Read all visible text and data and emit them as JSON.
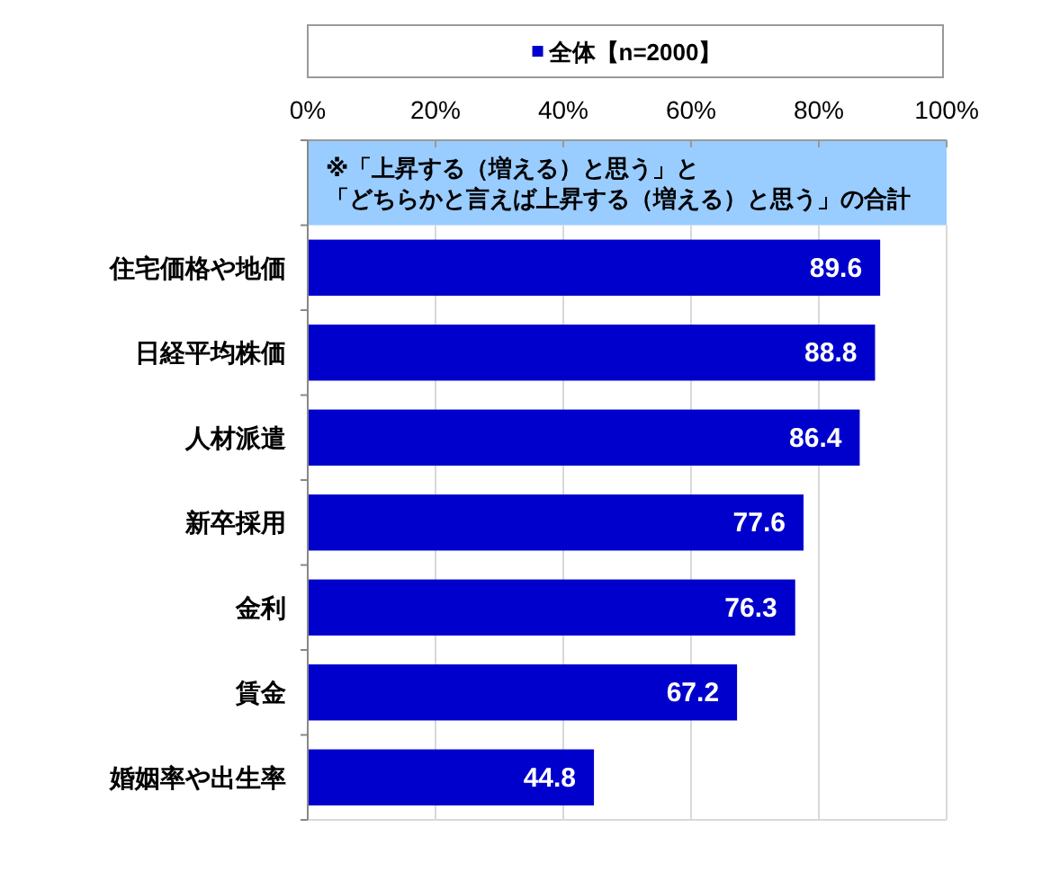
{
  "chart_data": {
    "type": "bar",
    "orientation": "horizontal",
    "categories": [
      "住宅価格や地価",
      "日経平均株価",
      "人材派遣",
      "新卒採用",
      "金利",
      "賃金",
      "婚姻率や出生率"
    ],
    "series": [
      {
        "name": "全体【n=2000】",
        "color": "#0000cc",
        "values": [
          89.6,
          88.8,
          86.4,
          77.6,
          76.3,
          67.2,
          44.8
        ]
      }
    ],
    "xlim": [
      0,
      100
    ],
    "xticks": [
      {
        "value": 0,
        "label": "0%"
      },
      {
        "value": 20,
        "label": "20%"
      },
      {
        "value": 40,
        "label": "40%"
      },
      {
        "value": 60,
        "label": "60%"
      },
      {
        "value": 80,
        "label": "80%"
      },
      {
        "value": 100,
        "label": "100%"
      }
    ],
    "annotations": [
      "※「上昇する（増える）と思う」と",
      "「どちらかと言えば上昇する（増える）と思う」の合計"
    ],
    "data_labels": true,
    "grid": "x",
    "legend": "top"
  }
}
